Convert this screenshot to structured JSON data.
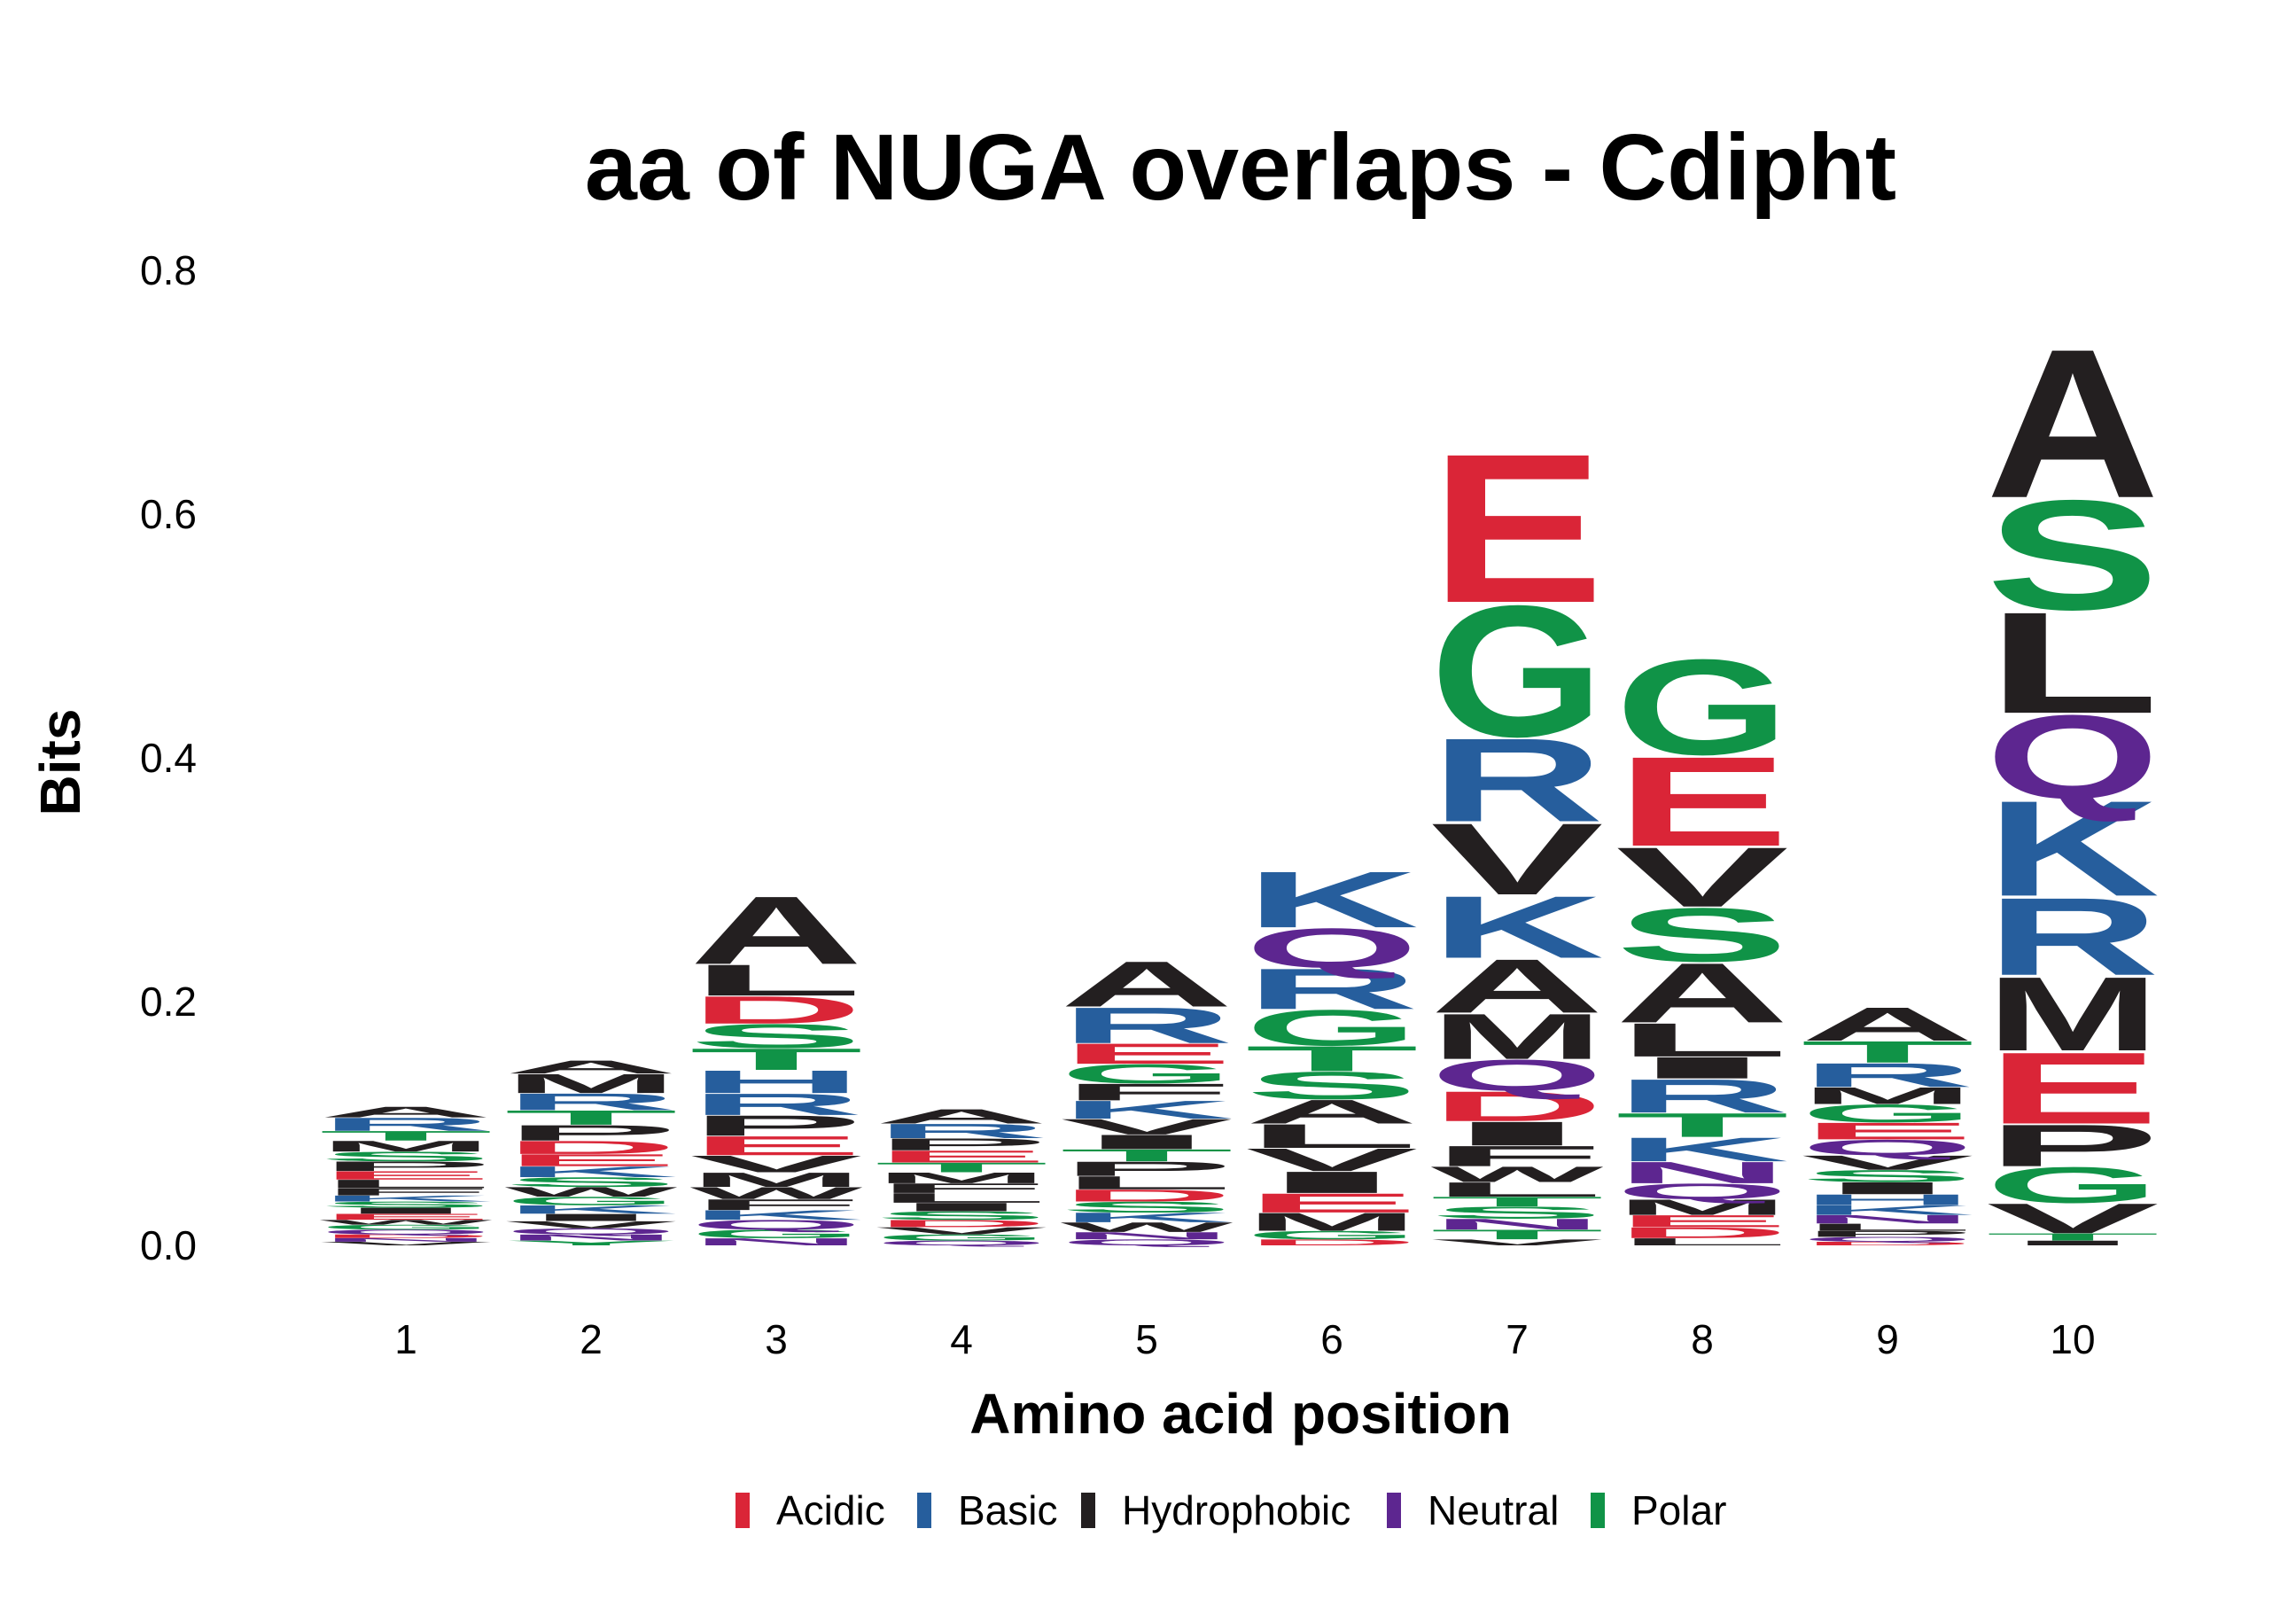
{
  "chart_data": {
    "type": "sequence-logo",
    "title": "aa of NUGA overlaps - Cdipht",
    "xlabel": "Amino acid position",
    "ylabel": "Bits",
    "ylim": [
      0,
      0.8
    ],
    "y_ticks": [
      "0.0",
      "0.2",
      "0.4",
      "0.6",
      "0.8"
    ],
    "grid": false,
    "legend_position": "bottom",
    "color_groups": [
      {
        "name": "Acidic",
        "color": "#DA2537"
      },
      {
        "name": "Basic",
        "color": "#265E9D"
      },
      {
        "name": "Hydrophobic",
        "color": "#231F20"
      },
      {
        "name": "Neutral",
        "color": "#5D2690"
      },
      {
        "name": "Polar",
        "color": "#109347"
      }
    ],
    "residue_groups": {
      "D": "Acidic",
      "E": "Acidic",
      "H": "Basic",
      "K": "Basic",
      "R": "Basic",
      "A": "Hydrophobic",
      "F": "Hydrophobic",
      "I": "Hydrophobic",
      "L": "Hydrophobic",
      "M": "Hydrophobic",
      "P": "Hydrophobic",
      "V": "Hydrophobic",
      "W": "Hydrophobic",
      "N": "Neutral",
      "Q": "Neutral",
      "C": "Polar",
      "G": "Polar",
      "S": "Polar",
      "T": "Polar",
      "Y": "Polar"
    },
    "positions": [
      {
        "x": "1",
        "stack": [
          {
            "aa": "V",
            "bits": 0.003
          },
          {
            "aa": "N",
            "bits": 0.003
          },
          {
            "aa": "D",
            "bits": 0.003
          },
          {
            "aa": "Q",
            "bits": 0.004
          },
          {
            "aa": "G",
            "bits": 0.004
          },
          {
            "aa": "W",
            "bits": 0.004
          },
          {
            "aa": "E",
            "bits": 0.005
          },
          {
            "aa": "I",
            "bits": 0.005
          },
          {
            "aa": "S",
            "bits": 0.005
          },
          {
            "aa": "K",
            "bits": 0.005
          },
          {
            "aa": "F",
            "bits": 0.006
          },
          {
            "aa": "L",
            "bits": 0.007
          },
          {
            "aa": "E",
            "bits": 0.007
          },
          {
            "aa": "P",
            "bits": 0.008
          },
          {
            "aa": "S",
            "bits": 0.008
          },
          {
            "aa": "M",
            "bits": 0.009
          },
          {
            "aa": "T",
            "bits": 0.008
          },
          {
            "aa": "R",
            "bits": 0.011
          },
          {
            "aa": "A",
            "bits": 0.009
          }
        ]
      },
      {
        "x": "2",
        "stack": [
          {
            "aa": "Y",
            "bits": 0.004
          },
          {
            "aa": "N",
            "bits": 0.005
          },
          {
            "aa": "Q",
            "bits": 0.005
          },
          {
            "aa": "V",
            "bits": 0.006
          },
          {
            "aa": "I",
            "bits": 0.006
          },
          {
            "aa": "K",
            "bits": 0.007
          },
          {
            "aa": "G",
            "bits": 0.007
          },
          {
            "aa": "W",
            "bits": 0.008
          },
          {
            "aa": "S",
            "bits": 0.008
          },
          {
            "aa": "K",
            "bits": 0.009
          },
          {
            "aa": "E",
            "bits": 0.01
          },
          {
            "aa": "D",
            "bits": 0.011
          },
          {
            "aa": "P",
            "bits": 0.013
          },
          {
            "aa": "T",
            "bits": 0.012
          },
          {
            "aa": "R",
            "bits": 0.014
          },
          {
            "aa": "M",
            "bits": 0.016
          },
          {
            "aa": "A",
            "bits": 0.011
          }
        ]
      },
      {
        "x": "3",
        "stack": [
          {
            "aa": "N",
            "bits": 0.006
          },
          {
            "aa": "G",
            "bits": 0.007
          },
          {
            "aa": "Q",
            "bits": 0.008
          },
          {
            "aa": "K",
            "bits": 0.008
          },
          {
            "aa": "F",
            "bits": 0.009
          },
          {
            "aa": "W",
            "bits": 0.01
          },
          {
            "aa": "M",
            "bits": 0.012
          },
          {
            "aa": "V",
            "bits": 0.014
          },
          {
            "aa": "E",
            "bits": 0.016
          },
          {
            "aa": "P",
            "bits": 0.017
          },
          {
            "aa": "R",
            "bits": 0.018
          },
          {
            "aa": "H",
            "bits": 0.019
          },
          {
            "aa": "T",
            "bits": 0.018
          },
          {
            "aa": "S",
            "bits": 0.02
          },
          {
            "aa": "D",
            "bits": 0.023
          },
          {
            "aa": "L",
            "bits": 0.026
          },
          {
            "aa": "A",
            "bits": 0.057
          }
        ]
      },
      {
        "x": "4",
        "stack": [
          {
            "aa": "Q",
            "bits": 0.004
          },
          {
            "aa": "G",
            "bits": 0.005
          },
          {
            "aa": "V",
            "bits": 0.006
          },
          {
            "aa": "D",
            "bits": 0.006
          },
          {
            "aa": "S",
            "bits": 0.007
          },
          {
            "aa": "I",
            "bits": 0.007
          },
          {
            "aa": "L",
            "bits": 0.008
          },
          {
            "aa": "F",
            "bits": 0.008
          },
          {
            "aa": "M",
            "bits": 0.009
          },
          {
            "aa": "T",
            "bits": 0.008
          },
          {
            "aa": "E",
            "bits": 0.01
          },
          {
            "aa": "P",
            "bits": 0.01
          },
          {
            "aa": "R",
            "bits": 0.012
          },
          {
            "aa": "A",
            "bits": 0.012
          }
        ]
      },
      {
        "x": "5",
        "stack": [
          {
            "aa": "Q",
            "bits": 0.005
          },
          {
            "aa": "N",
            "bits": 0.006
          },
          {
            "aa": "W",
            "bits": 0.008
          },
          {
            "aa": "K",
            "bits": 0.008
          },
          {
            "aa": "S",
            "bits": 0.009
          },
          {
            "aa": "D",
            "bits": 0.01
          },
          {
            "aa": "L",
            "bits": 0.011
          },
          {
            "aa": "P",
            "bits": 0.012
          },
          {
            "aa": "T",
            "bits": 0.01
          },
          {
            "aa": "I",
            "bits": 0.012
          },
          {
            "aa": "V",
            "bits": 0.013
          },
          {
            "aa": "K",
            "bits": 0.015
          },
          {
            "aa": "F",
            "bits": 0.014
          },
          {
            "aa": "G",
            "bits": 0.016
          },
          {
            "aa": "E",
            "bits": 0.017
          },
          {
            "aa": "R",
            "bits": 0.03
          },
          {
            "aa": "A",
            "bits": 0.038
          }
        ]
      },
      {
        "x": "6",
        "stack": [
          {
            "aa": "D",
            "bits": 0.005
          },
          {
            "aa": "G",
            "bits": 0.007
          },
          {
            "aa": "M",
            "bits": 0.015
          },
          {
            "aa": "E",
            "bits": 0.016
          },
          {
            "aa": "I",
            "bits": 0.018
          },
          {
            "aa": "V",
            "bits": 0.019
          },
          {
            "aa": "L",
            "bits": 0.02
          },
          {
            "aa": "A",
            "bits": 0.02
          },
          {
            "aa": "S",
            "bits": 0.023
          },
          {
            "aa": "T",
            "bits": 0.021
          },
          {
            "aa": "G",
            "bits": 0.03
          },
          {
            "aa": "R",
            "bits": 0.034
          },
          {
            "aa": "Q",
            "bits": 0.033
          },
          {
            "aa": "K",
            "bits": 0.047
          }
        ]
      },
      {
        "x": "7",
        "stack": [
          {
            "aa": "V",
            "bits": 0.005
          },
          {
            "aa": "T",
            "bits": 0.008
          },
          {
            "aa": "N",
            "bits": 0.009
          },
          {
            "aa": "S",
            "bits": 0.01
          },
          {
            "aa": "T",
            "bits": 0.008
          },
          {
            "aa": "L",
            "bits": 0.012
          },
          {
            "aa": "W",
            "bits": 0.013
          },
          {
            "aa": "F",
            "bits": 0.017
          },
          {
            "aa": "I",
            "bits": 0.02
          },
          {
            "aa": "D",
            "bits": 0.025
          },
          {
            "aa": "Q",
            "bits": 0.026
          },
          {
            "aa": "M",
            "bits": 0.038
          },
          {
            "aa": "A",
            "bits": 0.045
          },
          {
            "aa": "K",
            "bits": 0.052
          },
          {
            "aa": "V",
            "bits": 0.06
          },
          {
            "aa": "R",
            "bits": 0.07
          },
          {
            "aa": "G",
            "bits": 0.11
          },
          {
            "aa": "E",
            "bits": 0.125
          }
        ]
      },
      {
        "x": "8",
        "stack": [
          {
            "aa": "L",
            "bits": 0.006
          },
          {
            "aa": "D",
            "bits": 0.009
          },
          {
            "aa": "E",
            "bits": 0.01
          },
          {
            "aa": "M",
            "bits": 0.013
          },
          {
            "aa": "Q",
            "bits": 0.013
          },
          {
            "aa": "N",
            "bits": 0.018
          },
          {
            "aa": "K",
            "bits": 0.02
          },
          {
            "aa": "T",
            "bits": 0.02
          },
          {
            "aa": "R",
            "bits": 0.028
          },
          {
            "aa": "I",
            "bits": 0.018
          },
          {
            "aa": "L",
            "bits": 0.028
          },
          {
            "aa": "A",
            "bits": 0.05
          },
          {
            "aa": "S",
            "bits": 0.045
          },
          {
            "aa": "V",
            "bits": 0.05
          },
          {
            "aa": "E",
            "bits": 0.075
          },
          {
            "aa": "G",
            "bits": 0.08
          }
        ]
      },
      {
        "x": "9",
        "stack": [
          {
            "aa": "D",
            "bits": 0.003
          },
          {
            "aa": "Q",
            "bits": 0.004
          },
          {
            "aa": "P",
            "bits": 0.005
          },
          {
            "aa": "L",
            "bits": 0.006
          },
          {
            "aa": "N",
            "bits": 0.007
          },
          {
            "aa": "K",
            "bits": 0.008
          },
          {
            "aa": "H",
            "bits": 0.009
          },
          {
            "aa": "I",
            "bits": 0.01
          },
          {
            "aa": "S",
            "bits": 0.01
          },
          {
            "aa": "V",
            "bits": 0.012
          },
          {
            "aa": "Q",
            "bits": 0.013
          },
          {
            "aa": "E",
            "bits": 0.014
          },
          {
            "aa": "G",
            "bits": 0.015
          },
          {
            "aa": "M",
            "bits": 0.014
          },
          {
            "aa": "R",
            "bits": 0.02
          },
          {
            "aa": "T",
            "bits": 0.018
          },
          {
            "aa": "A",
            "bits": 0.028
          }
        ]
      },
      {
        "x": "10",
        "stack": [
          {
            "aa": "I",
            "bits": 0.004
          },
          {
            "aa": "T",
            "bits": 0.006
          },
          {
            "aa": "V",
            "bits": 0.025
          },
          {
            "aa": "G",
            "bits": 0.03
          },
          {
            "aa": "P",
            "bits": 0.035
          },
          {
            "aa": "E",
            "bits": 0.06
          },
          {
            "aa": "M",
            "bits": 0.062
          },
          {
            "aa": "R",
            "bits": 0.065
          },
          {
            "aa": "K",
            "bits": 0.08
          },
          {
            "aa": "Q",
            "bits": 0.07
          },
          {
            "aa": "L",
            "bits": 0.085
          },
          {
            "aa": "S",
            "bits": 0.092
          },
          {
            "aa": "A",
            "bits": 0.125
          }
        ]
      }
    ]
  }
}
